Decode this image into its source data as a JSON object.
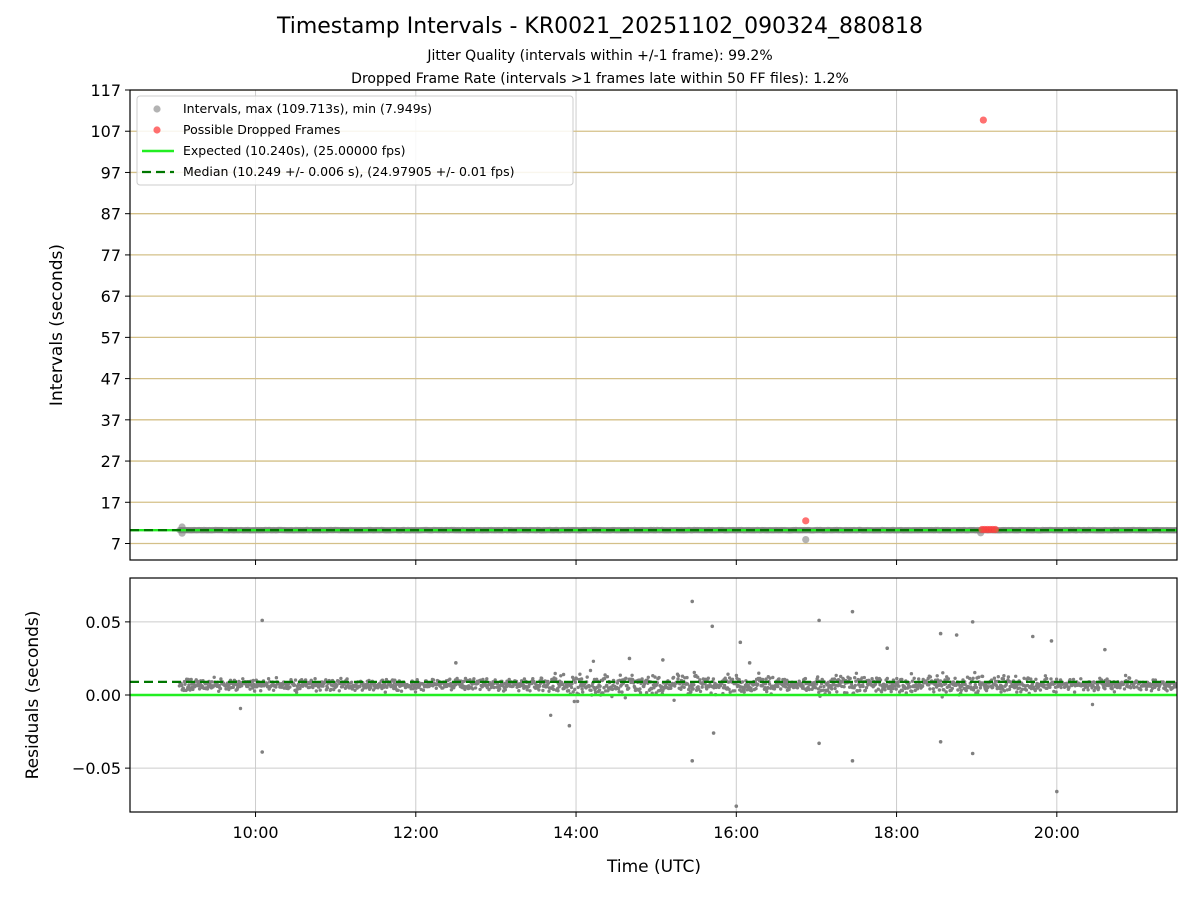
{
  "figure": {
    "title": "Timestamp Intervals - KR0021_20251102_090324_880818",
    "subtitle_jitter": "Jitter Quality (intervals within +/-1 frame): 99.2%",
    "subtitle_dropped": "Dropped Frame Rate (intervals >1 frames late within 50 FF files): 1.2%"
  },
  "colors": {
    "intervals": "#808080",
    "dropped": "#ff4040",
    "expected": "#22ee22",
    "median": "#007700",
    "hgrid_top": "#d4c088",
    "grid": "#cccccc"
  },
  "chart_data": [
    {
      "type": "scatter",
      "ylabel": "Intervals (seconds)",
      "xlim": [
        "08:26",
        "21:30"
      ],
      "ylim": [
        3,
        117
      ],
      "yticks": [
        "117",
        "107",
        "97",
        "87",
        "77",
        "67",
        "57",
        "47",
        "37",
        "27",
        "17",
        "7"
      ],
      "legend": {
        "placement": "upper-left",
        "entries": [
          "Intervals, max (109.713s), min (7.949s)",
          "Possible Dropped Frames",
          "Expected (10.240s), (25.00000 fps)",
          "Median (10.249 +/- 0.006 s), (24.97905 +/- 0.01 fps)"
        ]
      },
      "expected": 10.24,
      "median": 10.249,
      "interval_band": {
        "start": "09:03",
        "end": "21:30",
        "y_min": 10.2,
        "y_max": 10.27
      },
      "outliers": [
        {
          "x": "09:05",
          "y": 11.0
        },
        {
          "x": "09:05",
          "y": 9.5
        },
        {
          "x": "16:52",
          "y": 7.949
        },
        {
          "x": "19:03",
          "y": 9.6
        }
      ],
      "dropped_frames": [
        {
          "x": "16:52",
          "y": 12.5
        },
        {
          "x": "19:05",
          "y": 109.713
        },
        {
          "x": "19:04",
          "y": 10.4
        },
        {
          "x": "19:06",
          "y": 10.4
        },
        {
          "x": "19:08",
          "y": 10.4
        },
        {
          "x": "19:10",
          "y": 10.4
        },
        {
          "x": "19:12",
          "y": 10.4
        },
        {
          "x": "19:14",
          "y": 10.4
        }
      ]
    },
    {
      "type": "scatter",
      "xlabel": "Time (UTC)",
      "ylabel": "Residuals (seconds)",
      "xlim": [
        "08:26",
        "21:30"
      ],
      "ylim": [
        -0.08,
        0.08
      ],
      "xticks": [
        "10:00",
        "12:00",
        "14:00",
        "16:00",
        "18:00",
        "20:00"
      ],
      "yticks": [
        "0.05",
        "0.00",
        "−0.05"
      ],
      "expected": 0.0,
      "median": 0.009,
      "residual_band": {
        "start": "09:03",
        "end": "21:30",
        "center": 0.007,
        "spread": 0.006
      },
      "outliers": [
        {
          "x": "10:05",
          "y": 0.051
        },
        {
          "x": "10:05",
          "y": -0.039
        },
        {
          "x": "13:55",
          "y": -0.021
        },
        {
          "x": "15:27",
          "y": 0.064
        },
        {
          "x": "15:27",
          "y": -0.045
        },
        {
          "x": "15:42",
          "y": 0.047
        },
        {
          "x": "15:43",
          "y": -0.026
        },
        {
          "x": "16:00",
          "y": -0.076
        },
        {
          "x": "16:03",
          "y": 0.036
        },
        {
          "x": "17:02",
          "y": 0.051
        },
        {
          "x": "17:02",
          "y": -0.033
        },
        {
          "x": "17:27",
          "y": 0.057
        },
        {
          "x": "17:27",
          "y": -0.045
        },
        {
          "x": "17:53",
          "y": 0.032
        },
        {
          "x": "18:33",
          "y": 0.042
        },
        {
          "x": "18:33",
          "y": -0.032
        },
        {
          "x": "18:45",
          "y": 0.041
        },
        {
          "x": "18:57",
          "y": 0.05
        },
        {
          "x": "18:57",
          "y": -0.04
        },
        {
          "x": "19:42",
          "y": 0.04
        },
        {
          "x": "20:00",
          "y": -0.066
        },
        {
          "x": "19:56",
          "y": 0.037
        },
        {
          "x": "20:36",
          "y": 0.031
        },
        {
          "x": "16:10",
          "y": 0.022
        },
        {
          "x": "12:30",
          "y": 0.022
        },
        {
          "x": "14:40",
          "y": 0.025
        },
        {
          "x": "15:05",
          "y": 0.024
        }
      ]
    }
  ]
}
